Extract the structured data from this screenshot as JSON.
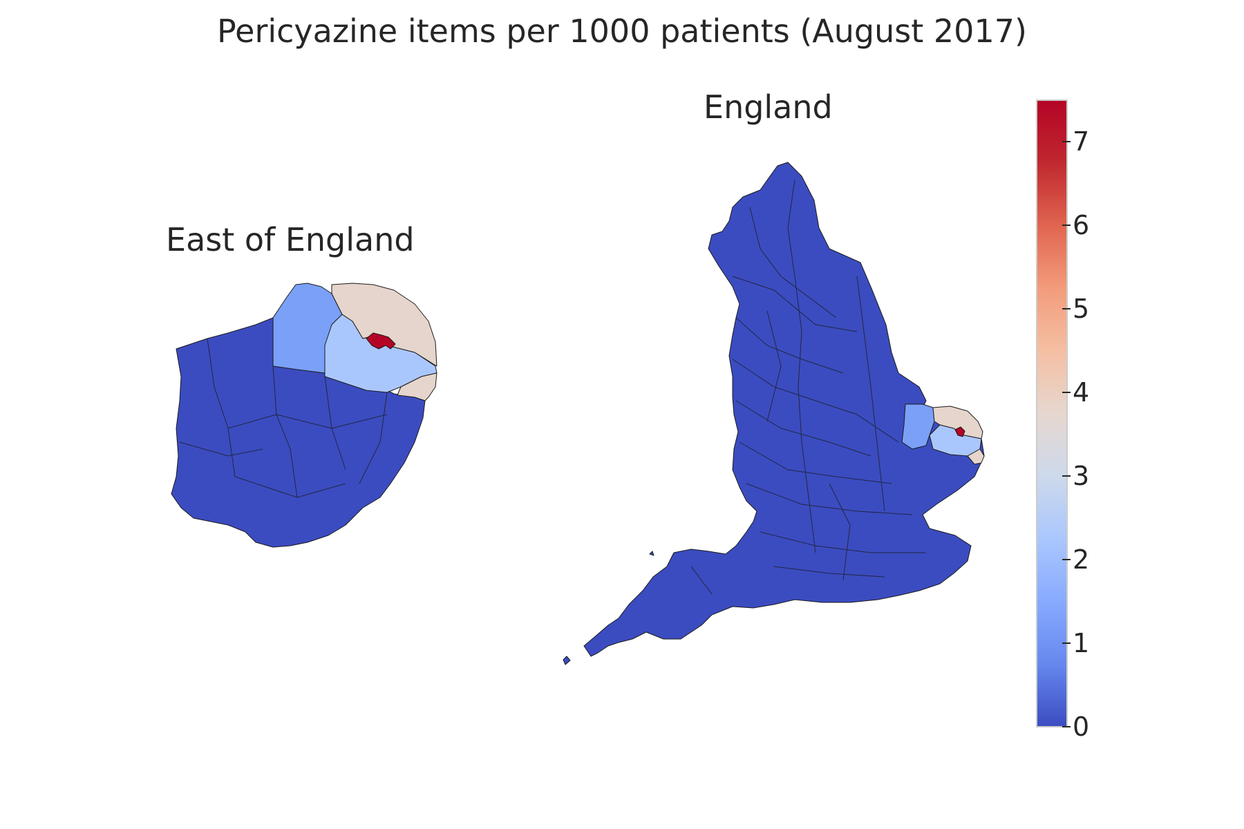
{
  "title": "Pericyazine items per 1000 patients (August 2017)",
  "panels": {
    "east": {
      "title": "East of England"
    },
    "england": {
      "title": "England"
    }
  },
  "colorbar": {
    "colormap": "coolwarm",
    "min": 0,
    "max": 7.5,
    "ticks": [
      "0",
      "1",
      "2",
      "3",
      "4",
      "5",
      "6",
      "7"
    ],
    "colors": [
      "#3b4cc0",
      "#6688ee",
      "#88aaff",
      "#aac7fd",
      "#cdd9ec",
      "#e6d7cf",
      "#f5bfa3",
      "#f29c7b",
      "#e0654f",
      "#c0282f",
      "#b40426"
    ]
  },
  "map_colors": {
    "base": "#3b4cc0",
    "level_1_5": "#7aa0f8",
    "level_2_5": "#aac7fd",
    "level_4": "#e6d5cc",
    "level_7_5": "#b40426",
    "border": "#1a1a1a"
  }
}
